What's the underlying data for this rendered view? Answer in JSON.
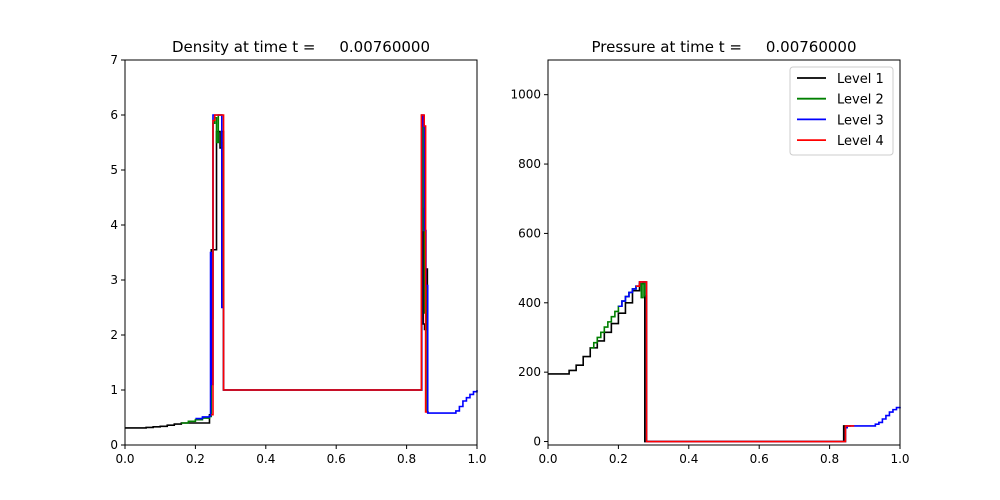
{
  "chart_data": [
    {
      "type": "line",
      "title": "Density at time t =     0.00760000",
      "xlabel": "",
      "ylabel": "",
      "xlim": [
        0.0,
        1.0
      ],
      "ylim": [
        0,
        7
      ],
      "xticks": [
        "0.0",
        "0.2",
        "0.4",
        "0.6",
        "0.8",
        "1.0"
      ],
      "yticks": [
        "0",
        "1",
        "2",
        "3",
        "4",
        "5",
        "6",
        "7"
      ],
      "grid": false,
      "series": [
        {
          "name": "Level 1",
          "color": "#000000",
          "step": true,
          "x": [
            0.0,
            0.04,
            0.06,
            0.08,
            0.1,
            0.12,
            0.14,
            0.16,
            0.24,
            0.245,
            0.25,
            0.255,
            0.26,
            0.265,
            0.27,
            0.275,
            0.28,
            0.35,
            0.45,
            0.55,
            0.65,
            0.74,
            0.84,
            0.843,
            0.847,
            0.851,
            0.855,
            0.859,
            0.863
          ],
          "y": [
            0.31,
            0.31,
            0.32,
            0.33,
            0.34,
            0.36,
            0.38,
            0.4,
            0.55,
            3.55,
            3.55,
            3.55,
            5.7,
            5.7,
            5.4,
            5.7,
            1.0,
            1.0,
            1.0,
            1.0,
            1.0,
            1.0,
            1.0,
            4.3,
            2.2,
            2.1,
            3.2,
            0.6,
            0.6
          ]
        },
        {
          "name": "Level 2",
          "color": "#008000",
          "step": true,
          "x": [
            0.16,
            0.18,
            0.2,
            0.22,
            0.24,
            0.245,
            0.25,
            0.255,
            0.26,
            0.265,
            0.27,
            0.275,
            0.28,
            0.29,
            0.38,
            0.74,
            0.8,
            0.84,
            0.843,
            0.847,
            0.851,
            0.855,
            0.859
          ],
          "y": [
            0.4,
            0.43,
            0.46,
            0.49,
            0.52,
            2.3,
            5.85,
            5.95,
            5.5,
            6.0,
            6.0,
            5.5,
            1.0,
            1.0,
            1.0,
            1.0,
            1.0,
            1.0,
            5.9,
            3.9,
            2.4,
            2.9,
            0.6
          ]
        },
        {
          "name": "Level 3",
          "color": "#0000ff",
          "step": true,
          "x": [
            0.2,
            0.22,
            0.24,
            0.243,
            0.246,
            0.25,
            0.27,
            0.275,
            0.28,
            0.84,
            0.843,
            0.847,
            0.851,
            0.855,
            0.86,
            0.93,
            0.94,
            0.95,
            0.96,
            0.97,
            0.98,
            0.99,
            1.0
          ],
          "y": [
            0.48,
            0.51,
            0.53,
            3.5,
            1.1,
            6.0,
            6.0,
            2.5,
            1.0,
            1.0,
            6.0,
            5.8,
            3.9,
            2.9,
            0.58,
            0.58,
            0.62,
            0.7,
            0.8,
            0.86,
            0.92,
            0.97,
            1.0
          ]
        },
        {
          "name": "Level 4",
          "color": "#ff0000",
          "step": true,
          "x": [
            0.245,
            0.25,
            0.255,
            0.26,
            0.265,
            0.27,
            0.275,
            0.28,
            0.29,
            0.84,
            0.842,
            0.846,
            0.85,
            0.854,
            0.858
          ],
          "y": [
            0.55,
            5.9,
            6.0,
            6.0,
            6.0,
            6.0,
            6.0,
            1.0,
            1.0,
            1.0,
            6.0,
            6.0,
            5.8,
            0.6,
            0.6
          ]
        }
      ]
    },
    {
      "type": "line",
      "title": "Pressure at time t =     0.00760000",
      "xlabel": "",
      "ylabel": "",
      "xlim": [
        0.0,
        1.0
      ],
      "ylim": [
        -10,
        1100
      ],
      "xticks": [
        "0.0",
        "0.2",
        "0.4",
        "0.6",
        "0.8",
        "1.0"
      ],
      "yticks": [
        "0",
        "200",
        "400",
        "600",
        "800",
        "1000"
      ],
      "grid": false,
      "legend": "top-right",
      "series": [
        {
          "name": "Level 1",
          "color": "#000000",
          "step": true,
          "x": [
            0.0,
            0.04,
            0.06,
            0.08,
            0.1,
            0.12,
            0.14,
            0.16,
            0.18,
            0.2,
            0.22,
            0.24,
            0.26,
            0.275,
            0.28,
            0.74,
            0.84,
            0.86
          ],
          "y": [
            195,
            195,
            205,
            220,
            245,
            270,
            290,
            315,
            340,
            370,
            400,
            435,
            455,
            0,
            0,
            0,
            45,
            45
          ]
        },
        {
          "name": "Level 2",
          "color": "#008000",
          "step": true,
          "x": [
            0.12,
            0.13,
            0.14,
            0.15,
            0.16,
            0.17,
            0.18,
            0.19,
            0.2,
            0.21,
            0.22,
            0.23,
            0.24,
            0.25,
            0.26,
            0.265,
            0.27,
            0.275,
            0.28,
            0.38,
            0.74,
            0.8,
            0.84,
            0.845
          ],
          "y": [
            270,
            285,
            300,
            315,
            330,
            345,
            360,
            375,
            390,
            405,
            418,
            430,
            440,
            448,
            455,
            415,
            460,
            420,
            0,
            0,
            0,
            0,
            0,
            45
          ]
        },
        {
          "name": "Level 3",
          "color": "#0000ff",
          "step": true,
          "x": [
            0.2,
            0.21,
            0.22,
            0.23,
            0.24,
            0.25,
            0.26,
            0.275,
            0.28,
            0.38,
            0.74,
            0.84,
            0.845,
            0.85,
            0.86,
            0.92,
            0.93,
            0.94,
            0.95,
            0.96,
            0.97,
            0.98,
            0.99,
            1.0
          ],
          "y": [
            390,
            405,
            418,
            430,
            440,
            448,
            460,
            460,
            0,
            0,
            0,
            0,
            40,
            45,
            45,
            45,
            50,
            55,
            65,
            75,
            85,
            92,
            98,
            100
          ]
        },
        {
          "name": "Level 4",
          "color": "#ff0000",
          "step": true,
          "x": [
            0.25,
            0.26,
            0.275,
            0.28,
            0.3,
            0.84,
            0.845,
            0.85,
            0.86,
            0.87
          ],
          "y": [
            448,
            460,
            460,
            0,
            0,
            0,
            45,
            45,
            45,
            45
          ]
        }
      ]
    }
  ]
}
